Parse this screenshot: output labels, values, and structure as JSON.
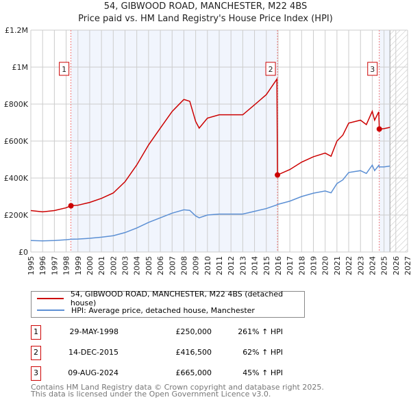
{
  "title": "54, GIBWOOD ROAD, MANCHESTER, M22 4BS",
  "subtitle": "Price paid vs. HM Land Registry's House Price Index (HPI)",
  "chart_data": {
    "type": "line",
    "xlim": [
      1995,
      2027
    ],
    "ylim": [
      0,
      1200000
    ],
    "yticks": [
      {
        "v": 0,
        "label": "£0"
      },
      {
        "v": 200000,
        "label": "£200K"
      },
      {
        "v": 400000,
        "label": "£400K"
      },
      {
        "v": 600000,
        "label": "£600K"
      },
      {
        "v": 800000,
        "label": "£800K"
      },
      {
        "v": 1000000,
        "label": "£1M"
      },
      {
        "v": 1200000,
        "label": "£1.2M"
      }
    ],
    "xticks": [
      1995,
      1996,
      1997,
      1998,
      1999,
      2000,
      2001,
      2002,
      2003,
      2004,
      2005,
      2006,
      2007,
      2008,
      2009,
      2010,
      2011,
      2012,
      2013,
      2014,
      2015,
      2016,
      2017,
      2018,
      2019,
      2020,
      2021,
      2022,
      2023,
      2024,
      2025,
      2026,
      2027
    ],
    "grid": true,
    "shaded_ranges": [
      [
        1998.41,
        2015.95
      ],
      [
        2024.6,
        2025.5
      ]
    ],
    "forecast_hatch_from": 2025.5,
    "x": [
      1995,
      1996,
      1997,
      1998,
      1998.4,
      1999,
      2000,
      2001,
      2002,
      2003,
      2004,
      2005,
      2006,
      2007,
      2008,
      2008.5,
      2009,
      2009.3,
      2010,
      2011,
      2012,
      2013,
      2014,
      2015,
      2015.9,
      2015.95,
      2016,
      2017,
      2018,
      2019,
      2020,
      2020.5,
      2021,
      2021.5,
      2022,
      2023,
      2023.5,
      2024,
      2024.2,
      2024.55,
      2024.6,
      2025,
      2025.5
    ],
    "series": [
      {
        "name": "54, GIBWOOD ROAD, MANCHESTER, M22 4BS (detached house)",
        "color": "#cc0000",
        "values": [
          224000,
          217000,
          224000,
          239000,
          250000,
          253000,
          268000,
          290000,
          319000,
          380000,
          471000,
          579000,
          670000,
          760000,
          825000,
          815000,
          706000,
          670000,
          724000,
          742000,
          742000,
          742000,
          796000,
          851000,
          935000,
          416500,
          418000,
          446000,
          486000,
          515000,
          535000,
          518000,
          600000,
          632000,
          697000,
          713000,
          689000,
          761000,
          713000,
          758000,
          665000,
          667000,
          674000
        ]
      },
      {
        "name": "HPI: Average price, detached house, Manchester",
        "color": "#5b8fd4",
        "values": [
          62000,
          60000,
          62000,
          66000,
          69000,
          70000,
          74000,
          80000,
          88000,
          105000,
          130000,
          160000,
          185000,
          210000,
          228000,
          225000,
          195000,
          185000,
          200000,
          205000,
          205000,
          205000,
          220000,
          235000,
          255000,
          257000,
          258000,
          275000,
          300000,
          318000,
          330000,
          320000,
          370000,
          390000,
          430000,
          440000,
          425000,
          470000,
          440000,
          468000,
          460000,
          460000,
          465000
        ]
      }
    ],
    "sales": [
      {
        "n": "1",
        "x": 1998.41,
        "price": 250000,
        "date": "29-MAY-1998",
        "price_label": "£250,000",
        "hpi": "261% ↑ HPI"
      },
      {
        "n": "2",
        "x": 2015.95,
        "price": 416500,
        "date": "14-DEC-2015",
        "price_label": "£416,500",
        "hpi": "62% ↑ HPI"
      },
      {
        "n": "3",
        "x": 2024.6,
        "price": 665000,
        "date": "09-AUG-2024",
        "price_label": "£665,000",
        "hpi": "45% ↑ HPI"
      }
    ]
  },
  "footer": [
    "Contains HM Land Registry data © Crown copyright and database right 2025.",
    "This data is licensed under the Open Government Licence v3.0."
  ]
}
